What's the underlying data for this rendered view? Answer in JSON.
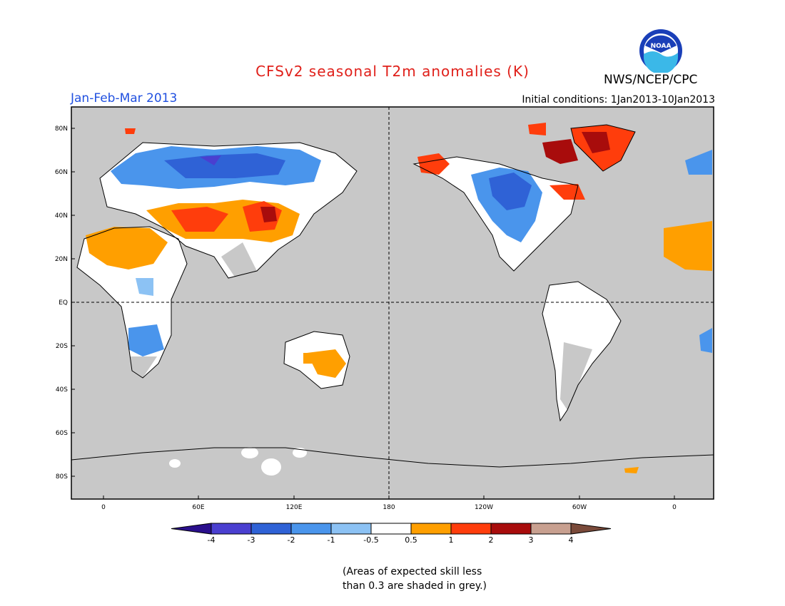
{
  "header": {
    "title": "CFSv2 seasonal T2m anomalies (K)",
    "period": "Jan-Feb-Mar 2013",
    "initial_conditions": "Initial conditions: 1Jan2013-10Jan2013",
    "agency": "NWS/NCEP/CPC",
    "logo_text": "NOAA"
  },
  "map": {
    "lat_labels": [
      "80N",
      "60N",
      "40N",
      "20N",
      "EQ",
      "20S",
      "40S",
      "60S",
      "80S"
    ],
    "lon_labels": [
      "0",
      "60E",
      "120E",
      "180",
      "120W",
      "60W",
      "0"
    ]
  },
  "legend": {
    "tick_labels": [
      "-4",
      "-3",
      "-2",
      "-1",
      "-0.5",
      "0.5",
      "1",
      "2",
      "3",
      "4"
    ],
    "colors": [
      "#2a0f8c",
      "#4a3fd0",
      "#2f62d6",
      "#4a95ec",
      "#8cc2f4",
      "#ffffff",
      "#ff9f00",
      "#ff3d0c",
      "#a80c0c",
      "#c8a090",
      "#7a4a3a"
    ]
  },
  "note": {
    "line1": "(Areas of expected skill less",
    "line2": "than 0.3 are shaded in grey.)"
  },
  "colors": {
    "title": "#e0201a",
    "period": "#2050e0",
    "grey_mask": "#c8c8c8"
  }
}
